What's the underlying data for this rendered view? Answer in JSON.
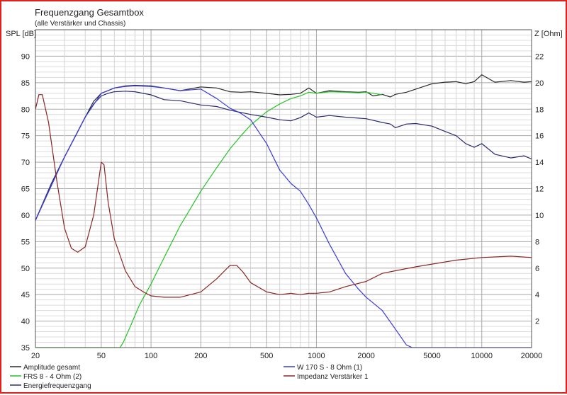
{
  "chart_data": {
    "type": "line",
    "title": "Frequenzgang Gesamtbox",
    "subtitle": "(alle Verstärker und Chassis)",
    "ylabel": "SPL [dB]",
    "y2label": "Z [Ohm]",
    "x_scale": "log",
    "xlim": [
      20,
      20000
    ],
    "ylim": [
      35,
      95
    ],
    "y2lim": [
      0,
      24
    ],
    "x_ticks": [
      20,
      50,
      100,
      200,
      500,
      1000,
      2000,
      5000,
      10000,
      20000
    ],
    "x_tick_labels": [
      "20",
      "50",
      "100",
      "200",
      "500",
      "1000",
      "2000",
      "5000",
      "10000",
      "20000"
    ],
    "y_ticks": [
      35,
      40,
      45,
      50,
      55,
      60,
      65,
      70,
      75,
      80,
      85,
      90
    ],
    "y2_ticks": [
      2,
      4,
      6,
      8,
      10,
      12,
      14,
      16,
      18,
      20,
      22
    ],
    "grid": true,
    "legend_position": "bottom",
    "series": [
      {
        "name": "Amplitude gesamt",
        "axis": "left",
        "color": "#2a2a2a",
        "x": [
          20,
          25,
          30,
          35,
          40,
          45,
          50,
          55,
          60,
          70,
          80,
          100,
          120,
          150,
          200,
          250,
          300,
          350,
          400,
          500,
          600,
          700,
          800,
          900,
          1000,
          1200,
          1500,
          1800,
          2000,
          2200,
          2500,
          2800,
          3000,
          3500,
          4000,
          5000,
          6000,
          7000,
          8000,
          9000,
          10000,
          12000,
          15000,
          18000,
          20000
        ],
        "y": [
          59,
          66,
          71,
          75,
          78.5,
          81.5,
          83,
          83.5,
          84,
          84.4,
          84.5,
          84.4,
          84,
          83.5,
          84.2,
          84,
          83.3,
          83.2,
          83.3,
          83,
          82.7,
          82.8,
          83,
          84,
          83,
          83.5,
          83.3,
          83.2,
          83.3,
          82.5,
          82.8,
          82.3,
          82.8,
          83.2,
          83.8,
          84.8,
          85.1,
          85.2,
          84.8,
          85.2,
          86.5,
          85.1,
          85.4,
          85.1,
          85.2
        ]
      },
      {
        "name": "FRS 8 - 4 Ohm (2)",
        "axis": "left",
        "color": "#27c427",
        "x": [
          20,
          30,
          50,
          65,
          68,
          75,
          85,
          100,
          120,
          150,
          200,
          250,
          300,
          350,
          400,
          500,
          600,
          700,
          800,
          900,
          1000,
          1200,
          1500,
          1800,
          2000,
          2200,
          2500
        ],
        "y": [
          35,
          35,
          35,
          35,
          36,
          39,
          43,
          47,
          52,
          58,
          64.5,
          69,
          72.5,
          75,
          77,
          79.5,
          81,
          82,
          82.5,
          83.2,
          83,
          83.3,
          83.2,
          83.1,
          83.2,
          83,
          82.7
        ]
      },
      {
        "name": "Energiefrequenzgang",
        "axis": "left",
        "color": "#2a2a6e",
        "x": [
          20,
          25,
          30,
          35,
          40,
          45,
          50,
          55,
          60,
          70,
          80,
          100,
          120,
          150,
          200,
          250,
          300,
          400,
          500,
          600,
          700,
          800,
          900,
          1000,
          1200,
          1500,
          2000,
          2500,
          2800,
          3000,
          3500,
          4000,
          5000,
          6000,
          7000,
          8000,
          9000,
          10000,
          12000,
          15000,
          18000,
          20000
        ],
        "y": [
          59,
          66,
          71,
          75,
          78.5,
          81,
          82.5,
          83,
          83.3,
          83.4,
          83.3,
          82.7,
          81.8,
          81.6,
          80.8,
          80.5,
          79.8,
          79,
          78.5,
          78,
          77.8,
          78.4,
          79.3,
          78.5,
          78.8,
          78.5,
          78.2,
          77.5,
          77.2,
          76.5,
          77.2,
          77.3,
          76.8,
          75.8,
          75,
          73.5,
          72.8,
          73.5,
          71.5,
          70.8,
          71.2,
          70.6
        ]
      },
      {
        "name": "W 170 S - 8 Ohm (1)",
        "axis": "left",
        "color": "#3a3ad8",
        "x": [
          20,
          30,
          40,
          50,
          60,
          70,
          80,
          100,
          120,
          150,
          200,
          250,
          300,
          350,
          400,
          500,
          600,
          700,
          800,
          900,
          1000,
          1200,
          1500,
          1800,
          2000,
          2500,
          3000,
          3500,
          3800,
          4000,
          6000,
          10000,
          20000
        ],
        "y": [
          59,
          71,
          78.5,
          83,
          84,
          84.3,
          84.4,
          84.3,
          84,
          83.5,
          83.8,
          82,
          80.2,
          79.2,
          78,
          73.5,
          68.5,
          66,
          64.5,
          62,
          59.5,
          54.5,
          49,
          46,
          44.5,
          42,
          38.5,
          35.5,
          35,
          35,
          35,
          35,
          35
        ]
      },
      {
        "name": "Impedanz Verstärker 1",
        "axis": "right",
        "color": "#8b2525",
        "x": [
          20,
          21,
          22,
          24,
          27,
          30,
          33,
          36,
          40,
          45,
          50,
          52,
          55,
          60,
          70,
          80,
          90,
          100,
          120,
          150,
          200,
          250,
          300,
          330,
          360,
          400,
          500,
          600,
          700,
          800,
          900,
          1000,
          1200,
          1500,
          2000,
          2500,
          3000,
          4000,
          5000,
          7000,
          10000,
          15000,
          20000
        ],
        "y": [
          18,
          19.1,
          19.1,
          17,
          12.5,
          9,
          7.5,
          7.2,
          7.6,
          10,
          14,
          13.8,
          11,
          8.2,
          5.8,
          4.6,
          4.2,
          3.9,
          3.8,
          3.8,
          4.2,
          5.2,
          6.2,
          6.2,
          5.7,
          4.9,
          4.2,
          4,
          4.1,
          4,
          4.1,
          4.1,
          4.2,
          4.6,
          5,
          5.6,
          5.8,
          6.1,
          6.3,
          6.6,
          6.8,
          6.9,
          6.8
        ]
      }
    ]
  }
}
